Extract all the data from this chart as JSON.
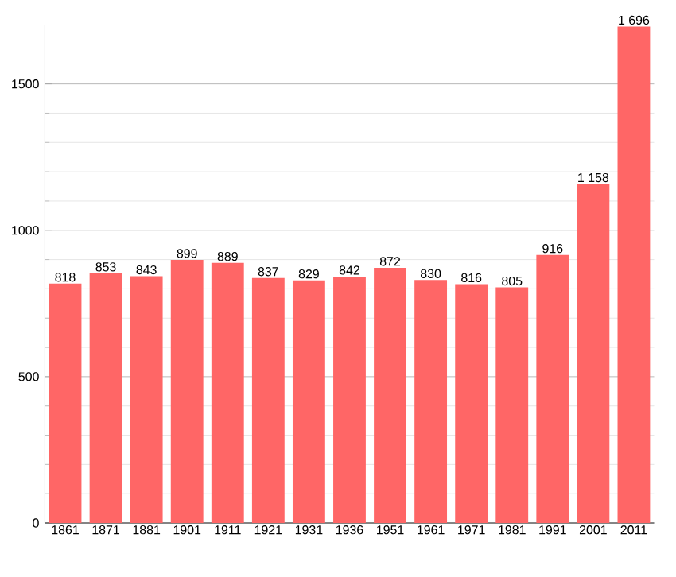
{
  "chart_data": {
    "type": "bar",
    "categories": [
      "1861",
      "1871",
      "1881",
      "1901",
      "1911",
      "1921",
      "1931",
      "1936",
      "1951",
      "1961",
      "1971",
      "1981",
      "1991",
      "2001",
      "2011"
    ],
    "values": [
      818,
      853,
      843,
      899,
      889,
      837,
      829,
      842,
      872,
      830,
      816,
      805,
      916,
      1158,
      1696
    ],
    "value_labels": [
      "818",
      "853",
      "843",
      "899",
      "889",
      "837",
      "829",
      "842",
      "872",
      "830",
      "816",
      "805",
      "916",
      "1 158",
      "1 696"
    ],
    "color": "#ff6666",
    "ylim": [
      0,
      1700
    ],
    "yticks": [
      0,
      500,
      1000,
      1500
    ],
    "grid": true
  }
}
